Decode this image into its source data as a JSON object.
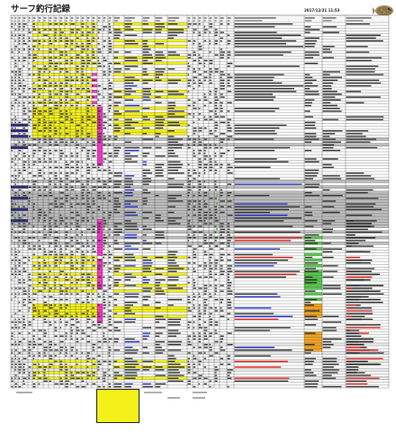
{
  "page": {
    "title": "サーフ釣行記録",
    "timestamp": "2017/12/21 11:53"
  },
  "sheet": {
    "columns": 37,
    "data_rows": 130,
    "colors": {
      "yellow": "#f4f11a",
      "gray": "#bdbdbd",
      "magenta": "#ff33cc",
      "green": "#55c84a",
      "orange": "#f2a223",
      "red_text": "#e0201a",
      "blue_text": "#2233cc",
      "navy_row": "#2e2e8e",
      "grid": "#2a2a2a"
    }
  }
}
